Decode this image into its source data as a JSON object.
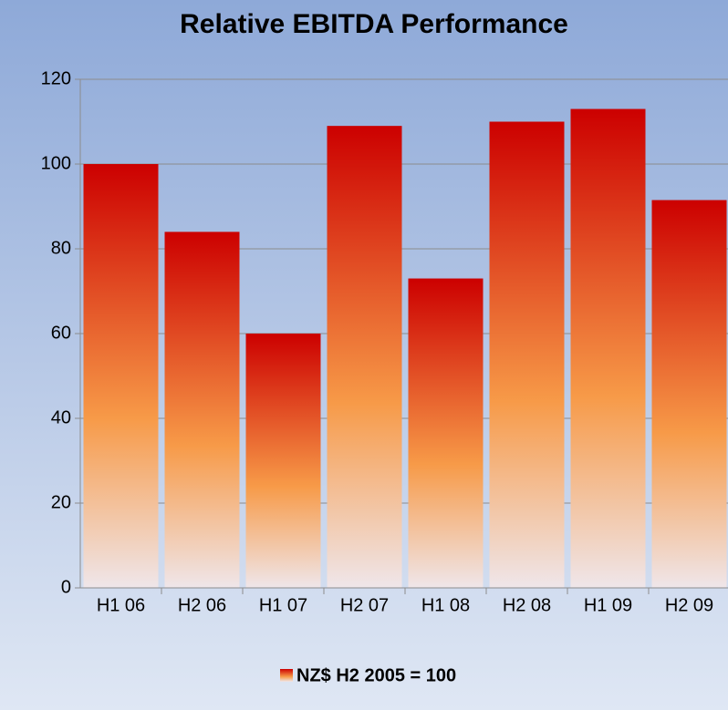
{
  "chart_data": {
    "type": "bar",
    "title": "Relative EBITDA Performance",
    "categories": [
      "H1 06",
      "H2 06",
      "H1 07",
      "H2 07",
      "H1 08",
      "H2 08",
      "H1 09",
      "H2 09"
    ],
    "series": [
      {
        "name": "NZ$ H2 2005 = 100",
        "color": "#cc0000",
        "values": [
          100,
          84,
          60,
          109,
          73,
          110,
          113,
          91.5
        ]
      }
    ],
    "ylim": [
      0,
      120
    ],
    "yticks": [
      0,
      20,
      40,
      60,
      80,
      100,
      120
    ],
    "grid": true,
    "legend": "bottom"
  }
}
